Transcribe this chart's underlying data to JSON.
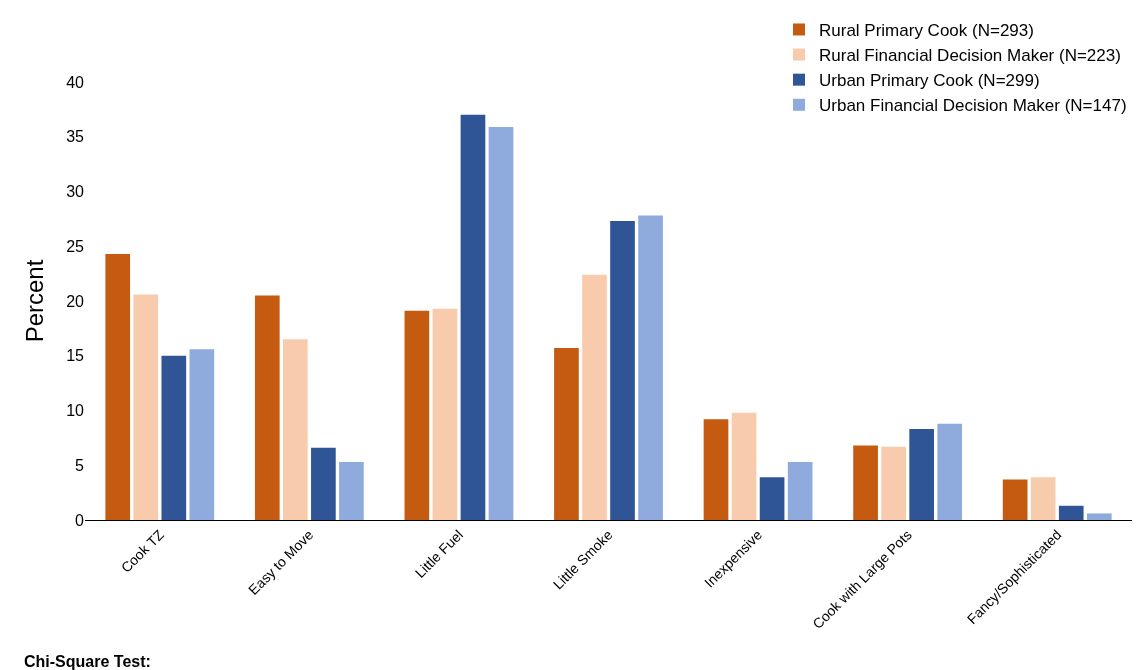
{
  "chart_data": {
    "type": "bar",
    "ylabel": "Percent",
    "categories": [
      "Cook TZ",
      "Easy to Move",
      "Little Fuel",
      "Little Smoke",
      "Inexpensive",
      "Cook with Large Pots",
      "Fancy/Sophisticated"
    ],
    "series": [
      {
        "name": "Rural Primary Cook (N=293)",
        "color": "#c55a11",
        "values": [
          24.3,
          20.5,
          19.1,
          15.7,
          9.2,
          6.8,
          3.7
        ]
      },
      {
        "name": "Rural Financial Decision Maker (N=223)",
        "color": "#f8cbad",
        "values": [
          20.6,
          16.5,
          19.3,
          22.4,
          9.8,
          6.7,
          3.9
        ]
      },
      {
        "name": "Urban Primary Cook (N=299)",
        "color": "#2f5597",
        "values": [
          15.0,
          6.6,
          37.0,
          27.3,
          3.9,
          8.3,
          1.3
        ]
      },
      {
        "name": "Urban Financial Decision Maker (N=147)",
        "color": "#8faadc",
        "values": [
          15.6,
          5.3,
          35.9,
          27.8,
          5.3,
          8.8,
          0.6
        ]
      }
    ],
    "ylim": [
      0,
      40
    ],
    "yticks": [
      0,
      5,
      10,
      15,
      20,
      25,
      30,
      35,
      40
    ],
    "grid": false,
    "legend": "top right",
    "annotations": [
      "Chi-Square Test:"
    ]
  }
}
